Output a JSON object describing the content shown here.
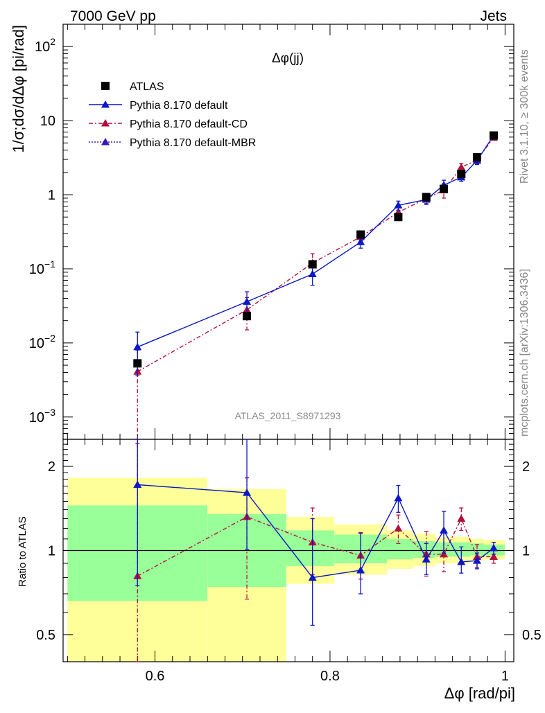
{
  "header": {
    "left": "7000 GeV pp",
    "right": "Jets"
  },
  "side_labels": {
    "rivet": "Rivet 3.1.10, ≥ 300k events",
    "mcplots": "mcplots.cern.ch [arXiv:1306.3436]"
  },
  "chart_data": [
    {
      "type": "scatter",
      "panel": "main",
      "title": "Δφ(jj)",
      "ylabel": "1/σ;dσ/dΔφ [pi/rad]",
      "xlabel": "",
      "analysis_label": "ATLAS_2011_S8971293",
      "yscale": "log",
      "xlim": [
        0.495,
        1.01
      ],
      "ylim": [
        0.0005,
        200
      ],
      "yticks": [
        {
          "value": 0.001,
          "base": "10",
          "exp": "−3"
        },
        {
          "value": 0.01,
          "base": "10",
          "exp": "−2"
        },
        {
          "value": 0.1,
          "base": "10",
          "exp": "−1"
        },
        {
          "value": 1,
          "base": "1",
          "exp": ""
        },
        {
          "value": 10,
          "base": "10",
          "exp": ""
        },
        {
          "value": 100,
          "base": "10",
          "exp": "2"
        }
      ],
      "legend_position": "top-left",
      "series": [
        {
          "name": "ATLAS",
          "color": "#000000",
          "marker": "square",
          "line": "none",
          "x": [
            0.58,
            0.705,
            0.78,
            0.835,
            0.878,
            0.91,
            0.93,
            0.95,
            0.968,
            0.987
          ],
          "y": [
            0.0053,
            0.023,
            0.115,
            0.29,
            0.5,
            0.93,
            1.2,
            1.9,
            3.2,
            6.3
          ]
        },
        {
          "name": "Pythia 8.170 default",
          "color": "#0b17c9",
          "marker": "triangle",
          "line": "solid",
          "x": [
            0.58,
            0.705,
            0.78,
            0.835,
            0.878,
            0.91,
            0.93,
            0.95,
            0.968,
            0.987
          ],
          "y": [
            0.0088,
            0.036,
            0.085,
            0.23,
            0.72,
            0.86,
            1.35,
            1.72,
            2.9,
            6.3
          ],
          "err": [
            0.0052,
            0.013,
            0.025,
            0.04,
            0.1,
            0.12,
            0.22,
            0.2,
            0.35,
            0.5
          ]
        },
        {
          "name": "Pythia 8.170 default-CD",
          "color": "#b0103d",
          "marker": "triangle",
          "line": "dashdot",
          "x": [
            0.58,
            0.705,
            0.78,
            0.835,
            0.878,
            0.91,
            0.93,
            0.95,
            0.968,
            0.987
          ],
          "y": [
            0.0041,
            0.028,
            0.12,
            0.27,
            0.58,
            0.89,
            1.15,
            2.35,
            2.95,
            5.9
          ],
          "err": [
            0.0039,
            0.013,
            0.04,
            0.05,
            0.09,
            0.13,
            0.25,
            0.3,
            0.35,
            0.4
          ]
        },
        {
          "name": "Pythia 8.170 default-MBR",
          "color": "#3a16b8",
          "marker": "triangle",
          "line": "dotted",
          "x": [],
          "y": []
        }
      ]
    },
    {
      "type": "scatter",
      "panel": "ratio",
      "ylabel": "Ratio to ATLAS",
      "xlabel": "Δφ [rad/pi]",
      "yscale": "log",
      "xlim": [
        0.495,
        1.01
      ],
      "ylim": [
        0.4,
        2.5
      ],
      "yticks": [
        0.5,
        1,
        2
      ],
      "xticks": [
        0.6,
        0.8,
        1
      ],
      "xtick_labels": [
        "0.6",
        "0.8",
        "1"
      ],
      "reference_line": 1,
      "bands": {
        "edges": [
          0.5,
          0.66,
          0.75,
          0.805,
          0.865,
          0.895,
          0.92,
          0.94,
          0.96,
          0.976,
          1.0
        ],
        "inner": [
          [
            0.66,
            1.45
          ],
          [
            0.74,
            1.35
          ],
          [
            0.88,
            1.18
          ],
          [
            0.9,
            1.14
          ],
          [
            0.93,
            1.1
          ],
          [
            0.94,
            1.08
          ],
          [
            0.95,
            1.07
          ],
          [
            0.95,
            1.07
          ],
          [
            0.96,
            1.06
          ],
          [
            0.96,
            1.05
          ]
        ],
        "outer": [
          [
            0.4,
            1.82
          ],
          [
            0.37,
            1.66
          ],
          [
            0.76,
            1.32
          ],
          [
            0.82,
            1.24
          ],
          [
            0.86,
            1.18
          ],
          [
            0.88,
            1.15
          ],
          [
            0.9,
            1.12
          ],
          [
            0.9,
            1.12
          ],
          [
            0.92,
            1.1
          ],
          [
            0.93,
            1.09
          ]
        ],
        "inner_color": "#99ff99",
        "outer_color": "#ffff99"
      },
      "series": [
        {
          "name": "Pythia 8.170 default",
          "color": "#0b17c9",
          "marker": "triangle",
          "line": "solid",
          "x": [
            0.58,
            0.705,
            0.78,
            0.835,
            0.878,
            0.91,
            0.93,
            0.95,
            0.968,
            0.987
          ],
          "y": [
            1.72,
            1.61,
            0.8,
            0.85,
            1.54,
            0.93,
            1.18,
            0.91,
            0.92,
            1.02
          ],
          "err_up": [
            2.5,
            2.1,
            0.5,
            0.3,
            0.17,
            0.13,
            0.2,
            0.12,
            0.06,
            0.05
          ],
          "err_down": [
            0.97,
            0.6,
            0.26,
            0.15,
            0.17,
            0.11,
            0.2,
            0.08,
            0.06,
            0.05
          ]
        },
        {
          "name": "Pythia 8.170 default-CD",
          "color": "#b0103d",
          "marker": "triangle",
          "line": "dashdot",
          "x": [
            0.58,
            0.705,
            0.78,
            0.835,
            0.878,
            0.91,
            0.93,
            0.95,
            0.968,
            0.987
          ],
          "y": [
            0.81,
            1.32,
            1.07,
            0.96,
            1.2,
            0.97,
            0.97,
            1.3,
            0.95,
            0.95
          ],
          "err_up": [
            1.6,
            0.5,
            0.35,
            0.2,
            0.14,
            0.2,
            0.2,
            0.12,
            0.1,
            0.06
          ],
          "err_down": [
            0.45,
            0.65,
            0.25,
            0.17,
            0.14,
            0.16,
            0.13,
            0.12,
            0.08,
            0.05
          ]
        }
      ]
    }
  ]
}
